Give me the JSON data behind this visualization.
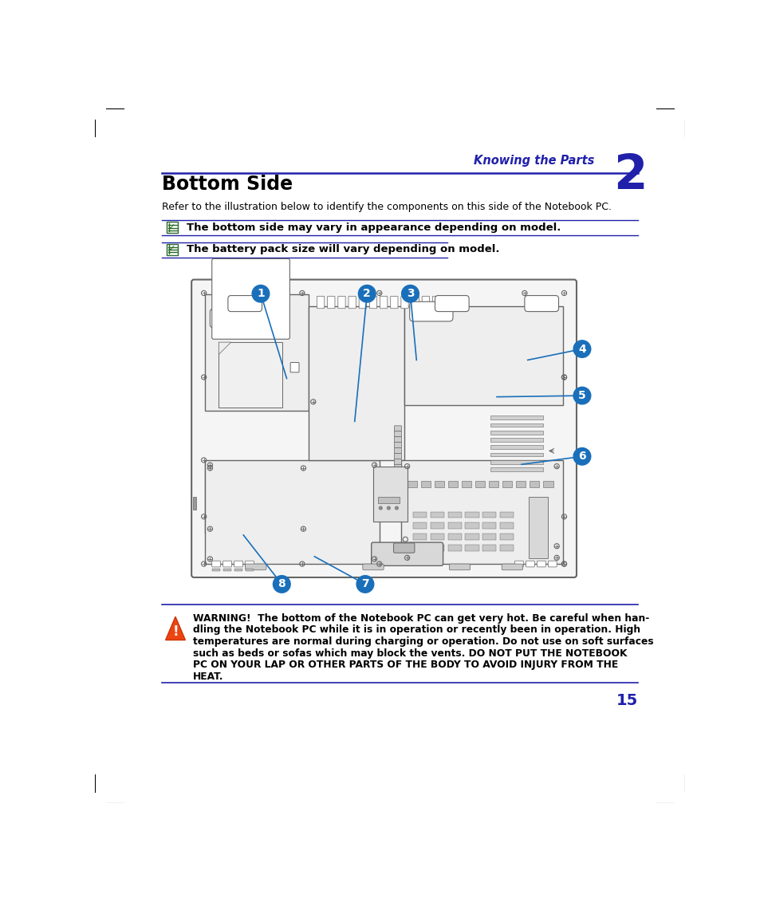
{
  "bg_color": "#ffffff",
  "chapter_label": "Knowing the Parts",
  "chapter_number": "2",
  "chapter_color": "#2020aa",
  "title": "Bottom Side",
  "subtitle": "Refer to the illustration below to identify the components on this side of the Notebook PC.",
  "note1": "The bottom side may vary in appearance depending on model.",
  "note2": "The battery pack size will vary depending on model.",
  "warning_text_line1": "WARNING!  The bottom of the Notebook PC can get very hot. Be careful when han-",
  "warning_text_line2": "dling the Notebook PC while it is in operation or recently been in operation. High",
  "warning_text_line3": "temperatures are normal during charging or operation. Do not use on soft surfaces",
  "warning_text_line4": "such as beds or sofas which may block the vents. DO NOT PUT THE NOTEBOOK",
  "warning_text_line5": "PC ON YOUR LAP OR OTHER PARTS OF THE BODY TO AVOID INJURY FROM THE",
  "warning_text_line6": "HEAT.",
  "page_number": "15",
  "divider_color": "#2020aa",
  "line_color": "#666666",
  "body_fill": "#f5f5f5",
  "cover_fill": "#eeeeee",
  "dark_fill": "#dddddd"
}
